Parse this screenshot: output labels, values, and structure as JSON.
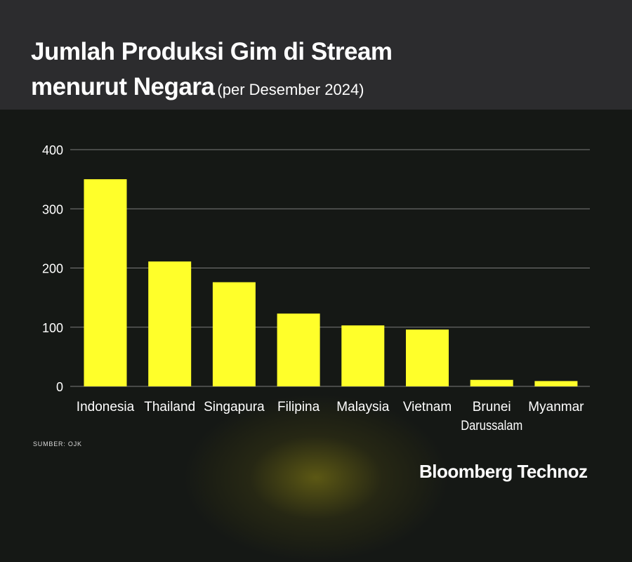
{
  "header": {
    "title_line1": "Jumlah Produksi Gim di Stream",
    "title_line2": "menurut Negara",
    "subtitle": "(per Desember 2024)"
  },
  "chart_data": {
    "type": "bar",
    "title": "Jumlah Produksi Gim di Stream menurut Negara (per Desember 2024)",
    "xlabel": "",
    "ylabel": "",
    "categories": [
      [
        "Indonesia"
      ],
      [
        "Thailand"
      ],
      [
        "Singapura"
      ],
      [
        "Filipina"
      ],
      [
        "Malaysia"
      ],
      [
        "Vietnam"
      ],
      [
        "Brunei",
        "Darussalam"
      ],
      [
        "Myanmar"
      ]
    ],
    "values": [
      350,
      211,
      176,
      123,
      103,
      96,
      11,
      9
    ],
    "ylim": [
      0,
      400
    ],
    "yticks": [
      0,
      100,
      200,
      300,
      400
    ],
    "grid": true,
    "bar_color": "#ffff2a"
  },
  "footer": {
    "source": "SUMBER: OJK",
    "brand": "Bloomberg Technoz"
  },
  "colors": {
    "background": "#151815",
    "header_background": "#2c2c2e",
    "gridline": "#7c7c7c",
    "text": "#ffffff"
  }
}
